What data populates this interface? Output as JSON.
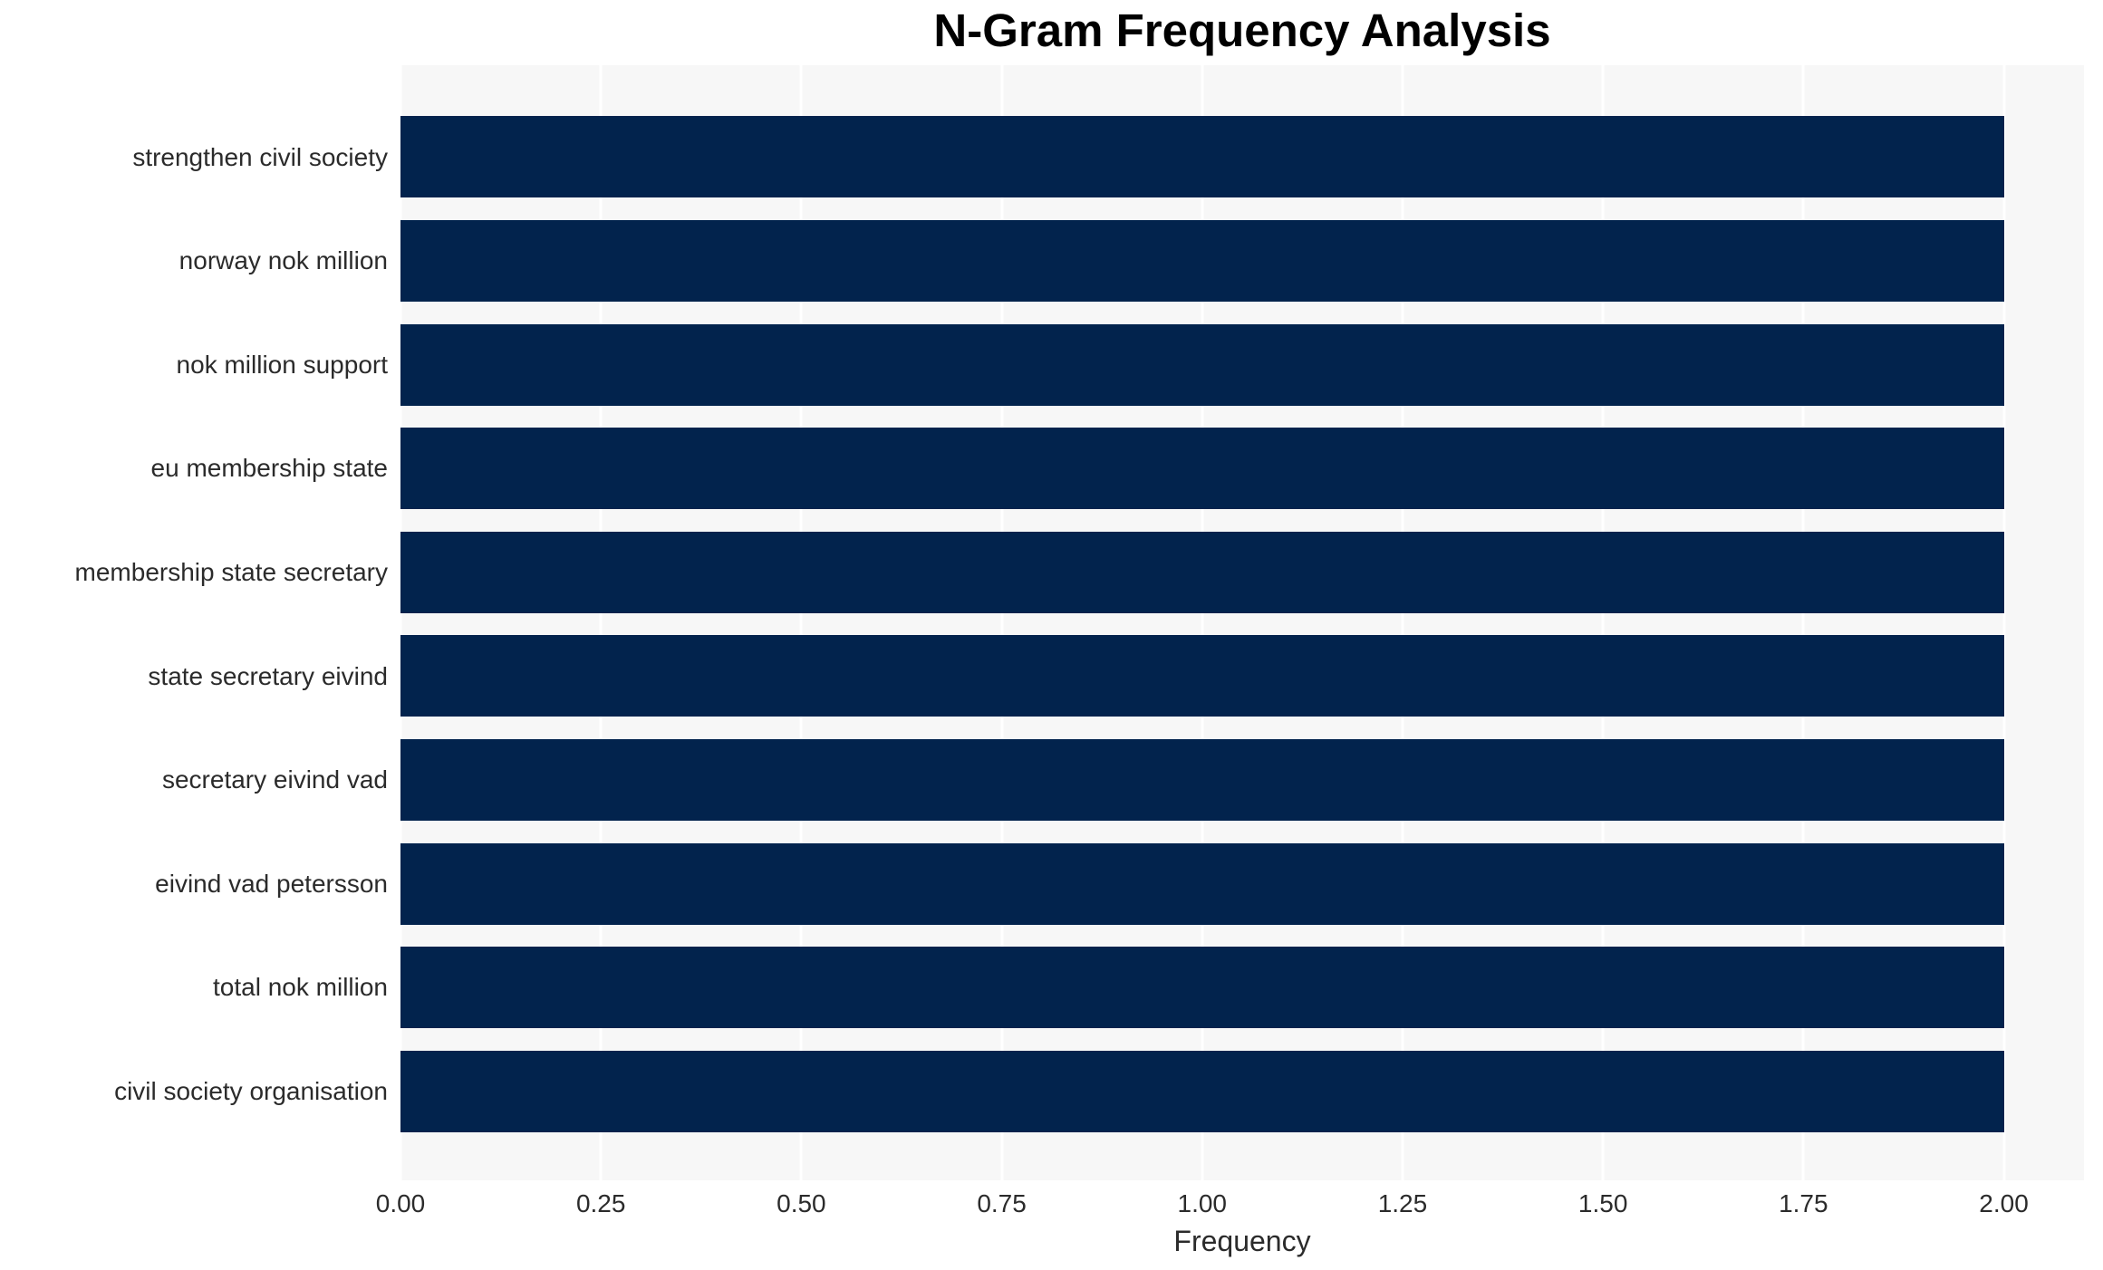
{
  "title": "N-Gram Frequency Analysis",
  "chart_data": {
    "type": "bar",
    "orientation": "horizontal",
    "title": "N-Gram Frequency Analysis",
    "xlabel": "Frequency",
    "ylabel": "",
    "categories": [
      "strengthen civil society",
      "norway nok million",
      "nok million support",
      "eu membership state",
      "membership state secretary",
      "state secretary eivind",
      "secretary eivind vad",
      "eivind vad petersson",
      "total nok million",
      "civil society organisation"
    ],
    "values": [
      2,
      2,
      2,
      2,
      2,
      2,
      2,
      2,
      2,
      2
    ],
    "xlim": [
      0,
      2.1
    ],
    "xticks": [
      0.0,
      0.25,
      0.5,
      0.75,
      1.0,
      1.25,
      1.5,
      1.75,
      2.0
    ],
    "xtick_labels": [
      "0.00",
      "0.25",
      "0.50",
      "0.75",
      "1.00",
      "1.25",
      "1.50",
      "1.75",
      "2.00"
    ],
    "grid": true,
    "legend": false,
    "colors": {
      "bar": "#02234d",
      "plot_bg": "#f7f7f7",
      "gridline": "#ffffff",
      "text": "#2b2b2b",
      "title": "#000000"
    }
  }
}
